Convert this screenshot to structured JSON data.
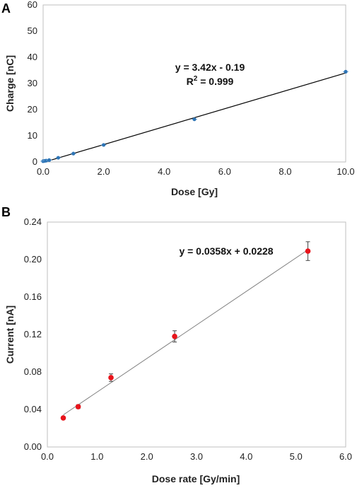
{
  "chart_data": [
    {
      "type": "scatter",
      "panel_label": "A",
      "xlabel": "Dose [Gy]",
      "ylabel": "Charge [nC]",
      "xlim": [
        0,
        10
      ],
      "ylim": [
        0,
        60
      ],
      "xticks": [
        "0.0",
        "2.0",
        "4.0",
        "6.0",
        "8.0",
        "10.0"
      ],
      "yticks": [
        "0",
        "10",
        "20",
        "30",
        "40",
        "50",
        "60"
      ],
      "grid": false,
      "points": [
        {
          "x": 0.0,
          "y": 0.3
        },
        {
          "x": 0.05,
          "y": 0.4
        },
        {
          "x": 0.1,
          "y": 0.5
        },
        {
          "x": 0.2,
          "y": 0.7
        },
        {
          "x": 0.5,
          "y": 1.6
        },
        {
          "x": 1.0,
          "y": 3.2
        },
        {
          "x": 2.0,
          "y": 6.5
        },
        {
          "x": 5.0,
          "y": 16.3
        },
        {
          "x": 10.0,
          "y": 34.5
        }
      ],
      "fit": {
        "slope": 3.42,
        "intercept": -0.19
      },
      "annotation": {
        "line1": "y = 3.42x - 0.19",
        "line2_prefix": "R",
        "line2_sup": "2",
        "line2_suffix": " = 0.999"
      },
      "marker_color": "#2e75b6",
      "line_color": "#000000"
    },
    {
      "type": "scatter",
      "panel_label": "B",
      "xlabel": "Dose rate [Gy/min]",
      "ylabel": "Current [nA]",
      "xlim": [
        0,
        6
      ],
      "ylim": [
        0,
        0.24
      ],
      "xticks": [
        "0.0",
        "1.0",
        "2.0",
        "3.0",
        "4.0",
        "5.0",
        "6.0"
      ],
      "yticks": [
        "0.00",
        "0.04",
        "0.08",
        "0.12",
        "0.16",
        "0.20",
        "0.24"
      ],
      "grid": false,
      "points": [
        {
          "x": 0.32,
          "y": 0.031,
          "err": 0.0
        },
        {
          "x": 0.62,
          "y": 0.043,
          "err": 0.002
        },
        {
          "x": 1.28,
          "y": 0.074,
          "err": 0.004
        },
        {
          "x": 2.56,
          "y": 0.118,
          "err": 0.006
        },
        {
          "x": 5.24,
          "y": 0.209,
          "err": 0.01
        }
      ],
      "fit": {
        "slope": 0.0358,
        "intercept": 0.0228
      },
      "annotation": {
        "line1": "y = 0.0358x + 0.0228"
      },
      "marker_color": "#e8141b",
      "line_color": "#7f7f7f"
    }
  ]
}
